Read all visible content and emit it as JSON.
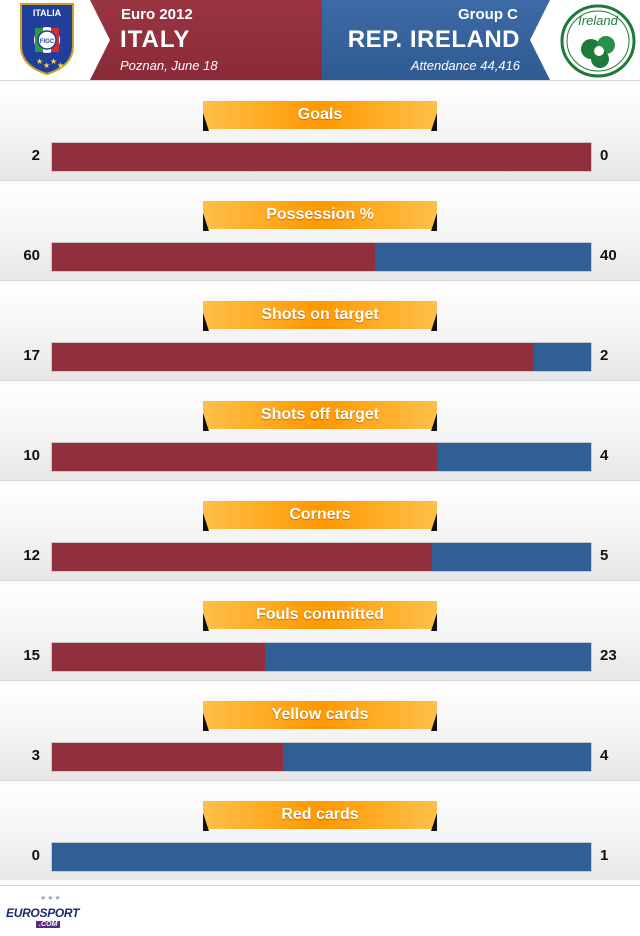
{
  "header": {
    "competition": "Euro 2012",
    "home_team": "ITALY",
    "venue_date": "Poznan, June 18",
    "group": "Group C",
    "away_team": "REP. IRELAND",
    "attendance": "Attendance 44,416",
    "home_crest": {
      "top_text": "ITALIA",
      "badge_text": "FIGC"
    },
    "away_crest": {
      "text": "Ireland"
    }
  },
  "colors": {
    "home": "#922f3d",
    "away": "#2f5f94",
    "label_orange": "#ff9800"
  },
  "stats": [
    {
      "label": "Goals",
      "home": 2,
      "away": 0
    },
    {
      "label": "Possession %",
      "home": 60,
      "away": 40
    },
    {
      "label": "Shots on target",
      "home": 17,
      "away": 2
    },
    {
      "label": "Shots off target",
      "home": 10,
      "away": 4
    },
    {
      "label": "Corners",
      "home": 12,
      "away": 5
    },
    {
      "label": "Fouls committed",
      "home": 15,
      "away": 23
    },
    {
      "label": "Yellow cards",
      "home": 3,
      "away": 4
    },
    {
      "label": "Red cards",
      "home": 0,
      "away": 1
    }
  ],
  "footer": {
    "logo_euro": "EURO",
    "logo_sport": "SPORT",
    "logo_com": ".COM"
  }
}
